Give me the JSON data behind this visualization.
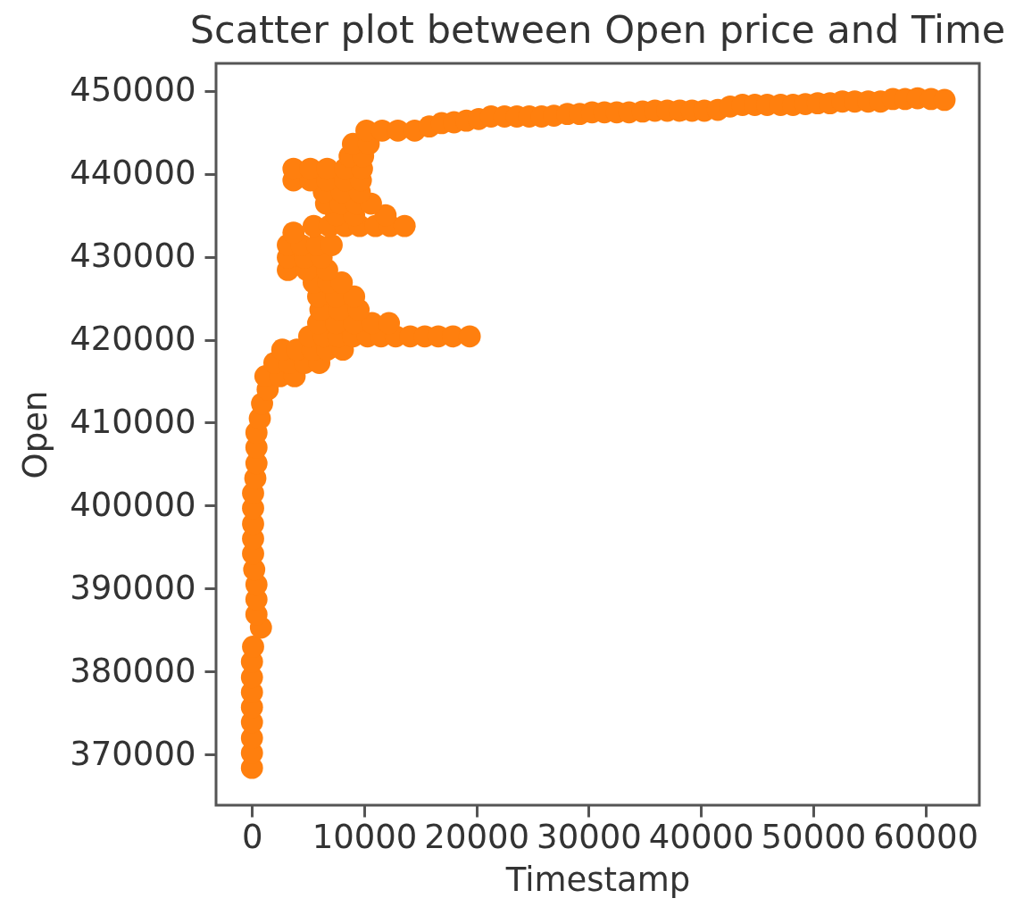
{
  "chart_data": {
    "type": "scatter",
    "title": "Scatter plot between Open price and Time",
    "xlabel": "Timestamp",
    "ylabel": "Open",
    "color": "#ff7f0e",
    "marker": "circle",
    "x": [
      0,
      0,
      0,
      0,
      0,
      0,
      0,
      0,
      100,
      800,
      400,
      400,
      400,
      200,
      100,
      100,
      100,
      100,
      100,
      300,
      400,
      400,
      400,
      700,
      900,
      1400,
      1200,
      2500,
      3800,
      2000,
      3300,
      4700,
      6000,
      2700,
      4000,
      5400,
      6700,
      8100,
      5100,
      6400,
      7700,
      9000,
      10300,
      11500,
      12800,
      14100,
      15400,
      16600,
      17900,
      19400,
      5900,
      7500,
      9100,
      10700,
      12200,
      6100,
      7800,
      9500,
      5900,
      7500,
      9100,
      5500,
      6800,
      8000,
      3200,
      4900,
      6700,
      3200,
      4700,
      6200,
      3200,
      4400,
      5800,
      7100,
      3700,
      5500,
      6900,
      8300,
      9600,
      11000,
      12300,
      13600,
      7500,
      9100,
      11900,
      6600,
      7900,
      9300,
      10600,
      6400,
      8000,
      9600,
      3700,
      5200,
      6700,
      8300,
      9700,
      3700,
      5200,
      6700,
      8300,
      9800,
      8700,
      9900,
      9000,
      10400,
      10200,
      11600,
      13000,
      14500,
      15800,
      16900,
      18000,
      19100,
      20200,
      21300,
      22500,
      23600,
      24700,
      25800,
      26900,
      28100,
      29200,
      30300,
      31400,
      32500,
      33600,
      34800,
      35900,
      37000,
      38100,
      39200,
      40300,
      41500,
      42600,
      43700,
      44800,
      45900,
      47100,
      48200,
      49300,
      50400,
      51500,
      52600,
      53700,
      54900,
      56000,
      57100,
      58200,
      59300,
      60500,
      61700
    ],
    "values": [
      368400,
      370200,
      372000,
      373900,
      375700,
      377500,
      379300,
      381200,
      383000,
      385300,
      386900,
      388700,
      390500,
      392300,
      394200,
      396000,
      397800,
      399700,
      401500,
      403300,
      405100,
      407000,
      408800,
      410500,
      412300,
      414000,
      415600,
      415600,
      415600,
      417200,
      417200,
      417200,
      417200,
      418800,
      418800,
      418800,
      418800,
      418800,
      420400,
      420400,
      420400,
      420400,
      420400,
      420400,
      420400,
      420400,
      420400,
      420400,
      420400,
      420400,
      422000,
      422000,
      422000,
      422000,
      422000,
      423600,
      423600,
      423600,
      425200,
      425200,
      425200,
      426900,
      426900,
      426900,
      428400,
      428400,
      428400,
      429900,
      429900,
      429900,
      431400,
      431400,
      431400,
      431400,
      432900,
      433700,
      433700,
      433700,
      433700,
      433700,
      433700,
      433700,
      435000,
      435000,
      435000,
      436400,
      436400,
      436400,
      436400,
      437800,
      437800,
      437800,
      439200,
      439200,
      439200,
      439200,
      439200,
      440600,
      440600,
      440600,
      440600,
      440600,
      442100,
      442100,
      443600,
      443600,
      445200,
      445200,
      445200,
      445200,
      445700,
      446100,
      446200,
      446400,
      446600,
      446900,
      446900,
      446900,
      446900,
      446900,
      447000,
      447200,
      447200,
      447400,
      447400,
      447400,
      447400,
      447500,
      447600,
      447600,
      447600,
      447600,
      447600,
      447700,
      448100,
      448300,
      448300,
      448300,
      448300,
      448300,
      448400,
      448500,
      448500,
      448700,
      448700,
      448700,
      448700,
      449000,
      449000,
      449100,
      449000,
      448900
    ],
    "xlim": [
      -3200,
      64800
    ],
    "ylim": [
      363900,
      453300
    ],
    "xticks": [
      0,
      10000,
      20000,
      30000,
      40000,
      50000,
      60000
    ],
    "yticks": [
      370000,
      380000,
      390000,
      400000,
      410000,
      420000,
      430000,
      440000,
      450000
    ]
  }
}
